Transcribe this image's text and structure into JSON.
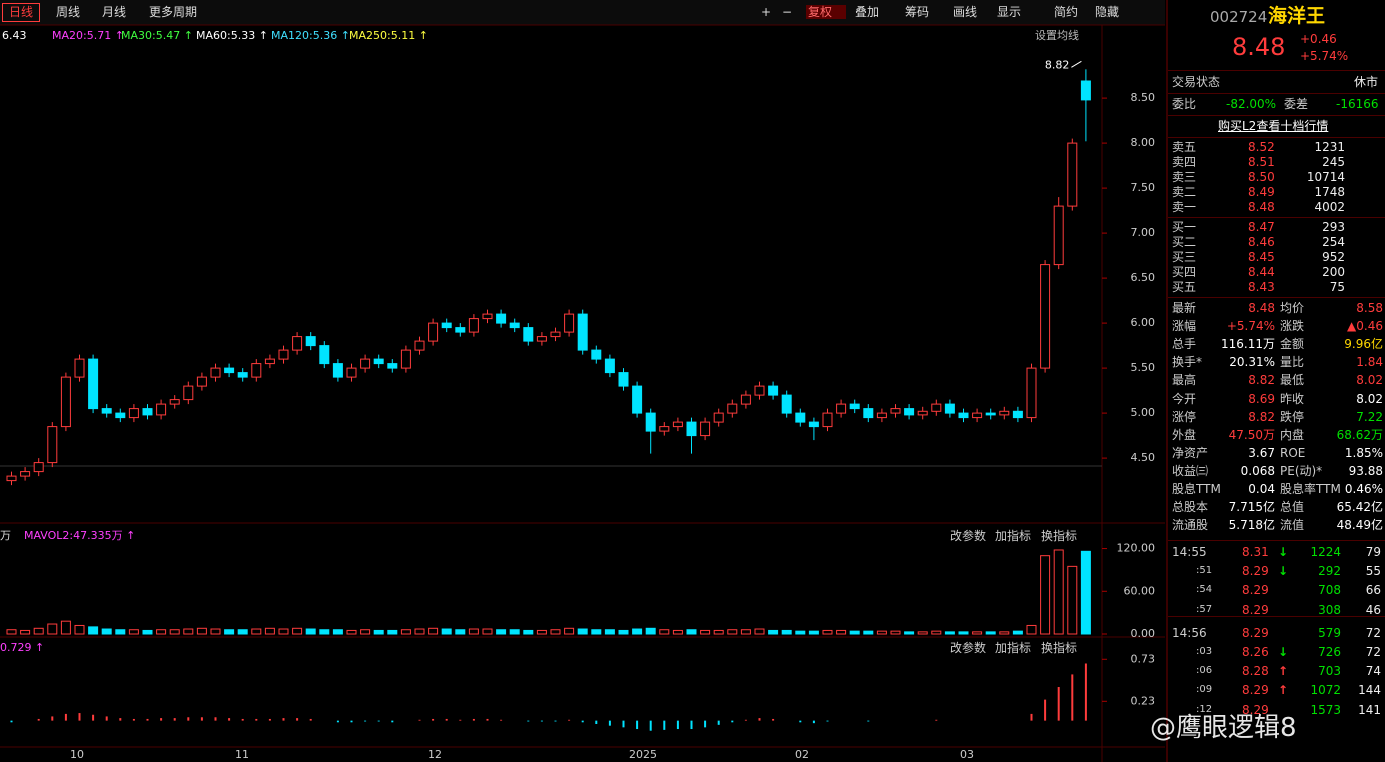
{
  "toolbar": {
    "periods": [
      "日线",
      "周线",
      "月线",
      "更多周期"
    ],
    "tools": [
      "+",
      "−",
      "复权",
      "叠加",
      "筹码",
      "画线",
      "显示",
      "简约",
      "隐藏"
    ]
  },
  "ma_legend": {
    "items": [
      "6.43",
      "MA20:5.71 ↑",
      "MA30:5.47 ↑",
      "MA60:5.33 ↑",
      "MA120:5.36 ↑",
      "MA250:5.11 ↑"
    ],
    "setting": "设置均线"
  },
  "price_chart": {
    "candles": [
      [
        4.25,
        4.35,
        4.2,
        4.3
      ],
      [
        4.3,
        4.4,
        4.25,
        4.35
      ],
      [
        4.35,
        4.5,
        4.3,
        4.45
      ],
      [
        4.45,
        4.9,
        4.4,
        4.85
      ],
      [
        4.85,
        5.45,
        4.8,
        5.4
      ],
      [
        5.4,
        5.65,
        5.35,
        5.6
      ],
      [
        5.6,
        5.65,
        5.0,
        5.05
      ],
      [
        5.05,
        5.1,
        4.95,
        5.0
      ],
      [
        5.0,
        5.05,
        4.9,
        4.95
      ],
      [
        4.95,
        5.1,
        4.9,
        5.05
      ],
      [
        5.05,
        5.1,
        4.93,
        4.98
      ],
      [
        4.98,
        5.15,
        4.93,
        5.1
      ],
      [
        5.1,
        5.2,
        5.05,
        5.15
      ],
      [
        5.15,
        5.35,
        5.1,
        5.3
      ],
      [
        5.3,
        5.45,
        5.25,
        5.4
      ],
      [
        5.4,
        5.55,
        5.35,
        5.5
      ],
      [
        5.5,
        5.55,
        5.4,
        5.45
      ],
      [
        5.45,
        5.5,
        5.35,
        5.4
      ],
      [
        5.4,
        5.6,
        5.35,
        5.55
      ],
      [
        5.55,
        5.65,
        5.5,
        5.6
      ],
      [
        5.6,
        5.75,
        5.55,
        5.7
      ],
      [
        5.7,
        5.9,
        5.65,
        5.85
      ],
      [
        5.85,
        5.9,
        5.7,
        5.75
      ],
      [
        5.75,
        5.8,
        5.5,
        5.55
      ],
      [
        5.55,
        5.6,
        5.35,
        5.4
      ],
      [
        5.4,
        5.55,
        5.35,
        5.5
      ],
      [
        5.5,
        5.65,
        5.45,
        5.6
      ],
      [
        5.6,
        5.65,
        5.5,
        5.55
      ],
      [
        5.55,
        5.6,
        5.45,
        5.5
      ],
      [
        5.5,
        5.75,
        5.45,
        5.7
      ],
      [
        5.7,
        5.85,
        5.65,
        5.8
      ],
      [
        5.8,
        6.05,
        5.75,
        6.0
      ],
      [
        6.0,
        6.05,
        5.9,
        5.95
      ],
      [
        5.95,
        6.0,
        5.85,
        5.9
      ],
      [
        5.9,
        6.1,
        5.85,
        6.05
      ],
      [
        6.05,
        6.15,
        6.0,
        6.1
      ],
      [
        6.1,
        6.15,
        5.95,
        6.0
      ],
      [
        6.0,
        6.05,
        5.9,
        5.95
      ],
      [
        5.95,
        6.0,
        5.75,
        5.8
      ],
      [
        5.8,
        5.9,
        5.75,
        5.85
      ],
      [
        5.85,
        5.95,
        5.8,
        5.9
      ],
      [
        5.9,
        6.15,
        5.85,
        6.1
      ],
      [
        6.1,
        6.15,
        5.65,
        5.7
      ],
      [
        5.7,
        5.75,
        5.55,
        5.6
      ],
      [
        5.6,
        5.65,
        5.4,
        5.45
      ],
      [
        5.45,
        5.5,
        5.25,
        5.3
      ],
      [
        5.3,
        5.35,
        4.95,
        5.0
      ],
      [
        5.0,
        5.05,
        4.55,
        4.8
      ],
      [
        4.8,
        4.9,
        4.75,
        4.85
      ],
      [
        4.85,
        4.95,
        4.8,
        4.9
      ],
      [
        4.9,
        4.95,
        4.55,
        4.75
      ],
      [
        4.75,
        4.95,
        4.7,
        4.9
      ],
      [
        4.9,
        5.05,
        4.85,
        5.0
      ],
      [
        5.0,
        5.15,
        4.95,
        5.1
      ],
      [
        5.1,
        5.25,
        5.05,
        5.2
      ],
      [
        5.2,
        5.35,
        5.15,
        5.3
      ],
      [
        5.3,
        5.35,
        5.15,
        5.2
      ],
      [
        5.2,
        5.25,
        4.95,
        5.0
      ],
      [
        5.0,
        5.05,
        4.85,
        4.9
      ],
      [
        4.9,
        4.95,
        4.7,
        4.85
      ],
      [
        4.85,
        5.05,
        4.8,
        5.0
      ],
      [
        5.0,
        5.15,
        4.95,
        5.1
      ],
      [
        5.1,
        5.15,
        5.0,
        5.05
      ],
      [
        5.05,
        5.1,
        4.9,
        4.95
      ],
      [
        4.95,
        5.05,
        4.9,
        5.0
      ],
      [
        5.0,
        5.1,
        4.95,
        5.05
      ],
      [
        5.05,
        5.1,
        4.93,
        4.98
      ],
      [
        4.98,
        5.07,
        4.93,
        5.02
      ],
      [
        5.02,
        5.15,
        4.97,
        5.1
      ],
      [
        5.1,
        5.15,
        4.95,
        5.0
      ],
      [
        5.0,
        5.05,
        4.9,
        4.95
      ],
      [
        4.95,
        5.05,
        4.9,
        5.0
      ],
      [
        5.0,
        5.05,
        4.93,
        4.98
      ],
      [
        4.98,
        5.07,
        4.93,
        5.02
      ],
      [
        5.02,
        5.07,
        4.9,
        4.95
      ],
      [
        4.95,
        5.55,
        4.9,
        5.5
      ],
      [
        5.5,
        6.7,
        5.45,
        6.65
      ],
      [
        6.65,
        7.4,
        6.6,
        7.3
      ],
      [
        7.3,
        8.05,
        7.25,
        8.0
      ],
      [
        8.69,
        8.82,
        8.02,
        8.48
      ]
    ],
    "ylim": [
      3.79,
      9.09
    ],
    "yticks": [
      {
        "value": 4.5,
        "label": "4.50"
      },
      {
        "value": 5,
        "label": "5.00"
      },
      {
        "value": 5.5,
        "label": "5.50"
      },
      {
        "value": 6,
        "label": "6.00"
      },
      {
        "value": 6.5,
        "label": "6.50"
      },
      {
        "value": 7,
        "label": "7.00"
      },
      {
        "value": 7.5,
        "label": "7.50"
      },
      {
        "value": 8,
        "label": "8.00"
      },
      {
        "value": 8.5,
        "label": "8.50"
      }
    ],
    "annotation": "8.82"
  },
  "volume_chart": {
    "header": "万",
    "indicator": "MAVOL2:47.335万 ↑",
    "buttons": [
      "改参数",
      "加指标",
      "换指标"
    ],
    "values": [
      6,
      5,
      8,
      14,
      18,
      12,
      10,
      7,
      6,
      6,
      5,
      6,
      6,
      7,
      8,
      7,
      6,
      6,
      7,
      8,
      7,
      8,
      7,
      6,
      6,
      5,
      6,
      5,
      5,
      6,
      7,
      8,
      7,
      6,
      7,
      7,
      6,
      6,
      5,
      5,
      6,
      8,
      7,
      6,
      6,
      5,
      7,
      8,
      6,
      5,
      6,
      5,
      5,
      6,
      6,
      7,
      5,
      5,
      4,
      4,
      5,
      5,
      4,
      4,
      4,
      4,
      3,
      3,
      4,
      3,
      3,
      3,
      3,
      3,
      4,
      12,
      110,
      118,
      95,
      116.11
    ],
    "ylim": [
      0,
      125
    ],
    "yticks": [
      {
        "value": 0,
        "label": "0.00"
      },
      {
        "value": 60,
        "label": "60.00"
      },
      {
        "value": 120,
        "label": "120.00"
      }
    ]
  },
  "macd_chart": {
    "indicator": "0.729 ↑",
    "buttons": [
      "改参数",
      "加指标",
      "换指标"
    ],
    "values": [
      -0.02,
      0,
      0.02,
      0.05,
      0.08,
      0.09,
      0.07,
      0.05,
      0.03,
      0.02,
      0.02,
      0.03,
      0.03,
      0.04,
      0.04,
      0.04,
      0.03,
      0.02,
      0.02,
      0.02,
      0.03,
      0.03,
      0.02,
      0,
      -0.02,
      -0.02,
      -0.01,
      -0.01,
      -0.02,
      0,
      0.01,
      0.02,
      0.02,
      0.01,
      0.02,
      0.02,
      0.01,
      0,
      -0.01,
      -0.01,
      -0.01,
      0.01,
      -0.02,
      -0.04,
      -0.06,
      -0.08,
      -0.1,
      -0.12,
      -0.11,
      -0.1,
      -0.1,
      -0.08,
      -0.05,
      -0.02,
      0.01,
      0.03,
      0.02,
      0,
      -0.02,
      -0.03,
      -0.01,
      0,
      0,
      -0.01,
      0,
      0,
      0,
      0,
      0.01,
      0,
      0,
      0,
      0,
      0,
      0,
      0.08,
      0.25,
      0.4,
      0.55,
      0.68
    ],
    "ylim": [
      -0.29,
      0.9
    ],
    "yticks": [
      0.23,
      0.73
    ]
  },
  "x_axis": {
    "labels": [
      "10",
      "11",
      "12",
      "2025",
      "02",
      "03"
    ]
  },
  "quote": {
    "code": "002724",
    "name": "海洋王",
    "price": "8.48",
    "change": "+0.46",
    "pct": "+5.74%",
    "status_label": "交易状态",
    "status": "休市",
    "wb_label": "委比",
    "wb": "-82.00%",
    "wc_label": "委差",
    "wc": "-16166",
    "l2": "购买L2查看十档行情",
    "book": [
      [
        "卖五",
        "8.52",
        "1231"
      ],
      [
        "卖四",
        "8.51",
        "245"
      ],
      [
        "卖三",
        "8.50",
        "10714"
      ],
      [
        "卖二",
        "8.49",
        "1748"
      ],
      [
        "卖一",
        "8.48",
        "4002"
      ],
      [
        "买一",
        "8.47",
        "293"
      ],
      [
        "买二",
        "8.46",
        "254"
      ],
      [
        "买三",
        "8.45",
        "952"
      ],
      [
        "买四",
        "8.44",
        "200"
      ],
      [
        "买五",
        "8.43",
        "75"
      ]
    ],
    "stats": [
      [
        "最新",
        "8.48",
        "均价",
        "8.58"
      ],
      [
        "涨幅",
        "+5.74%",
        "涨跌",
        "▲0.46"
      ],
      [
        "总手",
        "116.11万",
        "金额",
        "9.96亿"
      ],
      [
        "换手*",
        "20.31%",
        "量比",
        "1.84"
      ],
      [
        "最高",
        "8.82",
        "最低",
        "8.02"
      ],
      [
        "今开",
        "8.69",
        "昨收",
        "8.02"
      ],
      [
        "涨停",
        "8.82",
        "跌停",
        "7.22"
      ],
      [
        "外盘",
        "47.50万",
        "内盘",
        "68.62万"
      ],
      [
        "净资产",
        "3.67",
        "ROE",
        "1.85%"
      ],
      [
        "收益㈢",
        "0.068",
        "PE(动)*",
        "93.88"
      ],
      [
        "股息TTM",
        "0.04",
        "股息率TTM",
        "0.46%"
      ],
      [
        "总股本",
        "7.715亿",
        "总值",
        "65.42亿"
      ],
      [
        "流通股",
        "5.718亿",
        "流值",
        "48.49亿"
      ]
    ],
    "ticks": [
      {
        "time": "14:55",
        "price": "8.31",
        "arrow": "↓",
        "volume": "1224",
        "count": "79"
      },
      {
        "time": ":51",
        "price": "8.29",
        "arrow": "↓",
        "volume": "292",
        "count": "55"
      },
      {
        "time": ":54",
        "price": "8.29",
        "volume": "708",
        "count": "66"
      },
      {
        "time": ":57",
        "price": "8.29",
        "volume": "308",
        "count": "46"
      },
      {
        "time": "14:56",
        "price": "8.29",
        "volume": "579",
        "count": "72"
      },
      {
        "time": ":03",
        "price": "8.26",
        "arrow": "↓",
        "volume": "726",
        "count": "72"
      },
      {
        "time": ":06",
        "price": "8.28",
        "arrow": "↑",
        "volume": "703",
        "count": "74"
      },
      {
        "time": ":09",
        "price": "8.29",
        "arrow": "↑",
        "volume": "1072",
        "count": "144"
      },
      {
        "time": ":12",
        "price": "8.29",
        "volume": "1573",
        "count": "141"
      }
    ]
  },
  "watermark": "@鹰眼逻辑8"
}
